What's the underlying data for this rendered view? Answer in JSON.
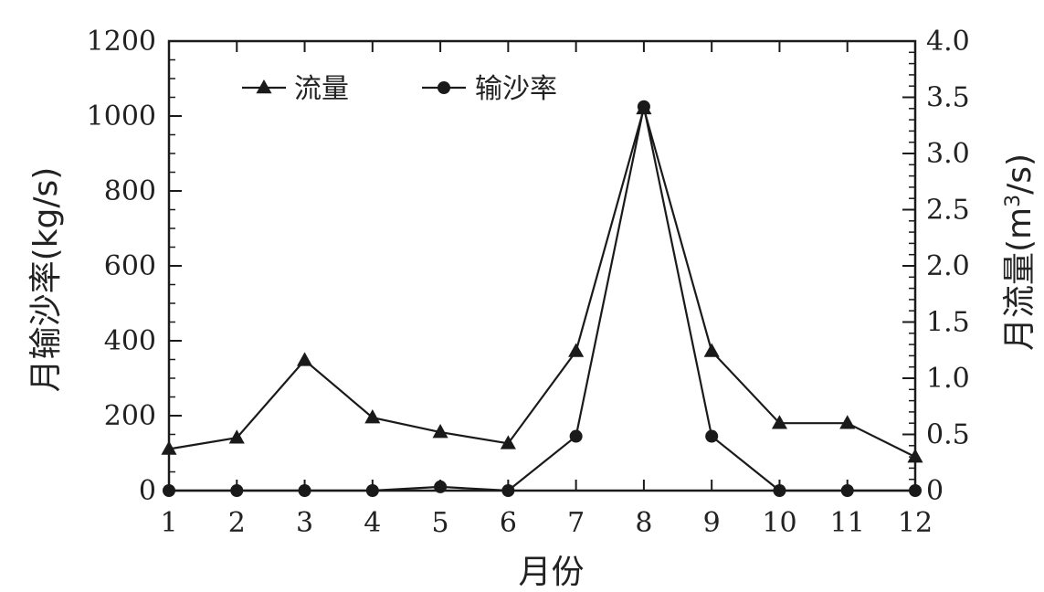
{
  "chart_data": {
    "type": "line",
    "xlabel": "月份",
    "ylabel_left": "月输沙率(kg/s)",
    "ylabel_right_prefix": "月流量(m",
    "ylabel_right_sup": "3",
    "ylabel_right_suffix": "/s)",
    "x": [
      1,
      2,
      3,
      4,
      5,
      6,
      7,
      8,
      9,
      10,
      11,
      12
    ],
    "x_tick_labels": [
      "1",
      "2",
      "3",
      "4",
      "5",
      "6",
      "7",
      "8",
      "9",
      "10",
      "11",
      "12"
    ],
    "ylim_left": [
      0,
      1200
    ],
    "y_ticks_left": [
      "0",
      "200",
      "400",
      "600",
      "800",
      "1000",
      "1200"
    ],
    "ylim_right": [
      0,
      4.0
    ],
    "y_ticks_right": [
      "0",
      "0.5",
      "1.0",
      "1.5",
      "2.0",
      "2.5",
      "3.0",
      "3.5",
      "4.0"
    ],
    "legend_position": "top-left",
    "series": [
      {
        "name": "流量",
        "axis": "right",
        "marker": "triangle",
        "values": [
          0.37,
          0.47,
          1.16,
          0.65,
          0.52,
          0.42,
          1.24,
          3.4,
          1.24,
          0.6,
          0.6,
          0.3
        ]
      },
      {
        "name": "输沙率",
        "axis": "left",
        "marker": "circle",
        "values": [
          0,
          0,
          0,
          0,
          10,
          0,
          145,
          1025,
          145,
          0,
          0,
          0
        ]
      }
    ]
  }
}
